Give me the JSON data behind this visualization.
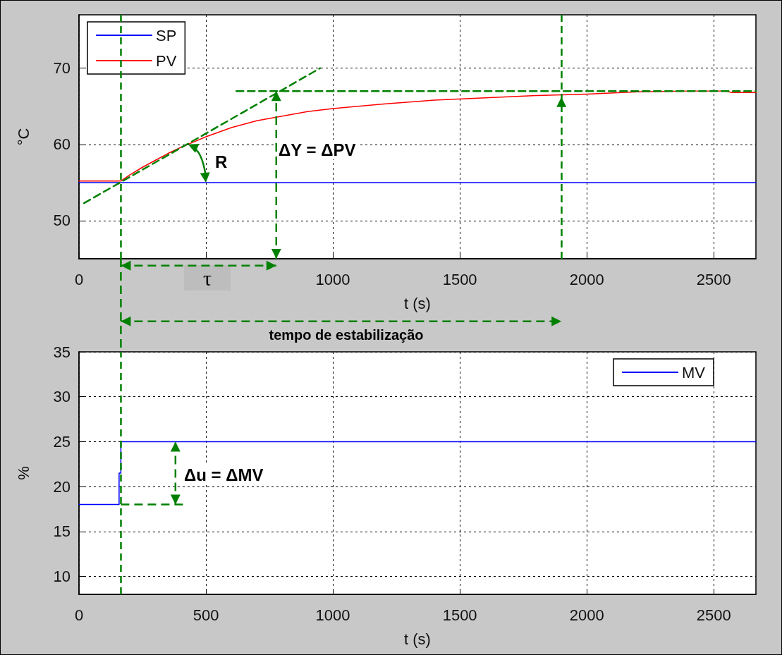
{
  "chart_data": [
    {
      "type": "line",
      "xlabel": "t (s)",
      "ylabel": "°C",
      "xlim": [
        0,
        2666
      ],
      "ylim": [
        45,
        77
      ],
      "xticks": [
        0,
        {
          "value": 500,
          "label": null
        },
        1000,
        1500,
        2000,
        2500
      ],
      "ref_lines": [
        {
          "axis": "x",
          "value": 165,
          "color": "#008000",
          "line_style": "dashed"
        },
        {
          "axis": "x",
          "value": 1900,
          "color": "#008000",
          "line_style": "dashed"
        }
      ],
      "yticks": [
        50,
        60,
        70
      ],
      "grid": true,
      "legend": "top left",
      "marker": "none",
      "line_style": "solid",
      "series": [
        {
          "name": "SP",
          "color": "#0000ff",
          "x": [
            0,
            2666
          ],
          "values": [
            55,
            55
          ]
        },
        {
          "name": "PV",
          "color": "#ff0000",
          "x": [
            0,
            165,
            200,
            250,
            300,
            350,
            400,
            450,
            500,
            600,
            700,
            800,
            900,
            1000,
            1200,
            1400,
            1600,
            1800,
            2000,
            2200,
            2400,
            2550,
            2570,
            2666
          ],
          "values": [
            55.2,
            55.2,
            56,
            57,
            57.9,
            58.8,
            59.6,
            60.3,
            61,
            62.2,
            63.1,
            63.7,
            64.3,
            64.7,
            65.3,
            65.8,
            66.1,
            66.4,
            66.6,
            66.9,
            67,
            67,
            66.8,
            66.8
          ]
        },
        {
          "color": "#008000",
          "line_style": "dashed",
          "x": [
            20,
            950
          ],
          "values": [
            52.3,
            70
          ]
        },
        {
          "color": "#008000",
          "line_style": "dashed",
          "x": [
            620,
            2666
          ],
          "values": [
            67,
            67
          ]
        }
      ],
      "annotations": [
        "R",
        "ΔY = ΔPV",
        "τ",
        "tempo de estabilização"
      ]
    },
    {
      "type": "line",
      "xlabel": "t (s)",
      "ylabel": "%",
      "xlim": [
        0,
        2666
      ],
      "ylim": [
        8,
        35
      ],
      "xticks": [
        0,
        500,
        1000,
        1500,
        2000,
        2500
      ],
      "yticks": [
        10,
        15,
        20,
        25,
        30,
        35
      ],
      "grid": true,
      "legend": "top right",
      "marker": "none",
      "line_style": "solid",
      "series": [
        {
          "name": "MV",
          "color": "#0000ff",
          "x": [
            0,
            158,
            158,
            165,
            165,
            2666
          ],
          "values": [
            18,
            18,
            21.5,
            21.5,
            25,
            25
          ]
        }
      ],
      "ref_lines": [
        {
          "axis": "x",
          "value": 165,
          "color": "#008000",
          "line_style": "dashed"
        }
      ],
      "annotations": [
        {
          "text": "Δu = ΔMV",
          "x": 165,
          "y": 18
        }
      ]
    }
  ]
}
